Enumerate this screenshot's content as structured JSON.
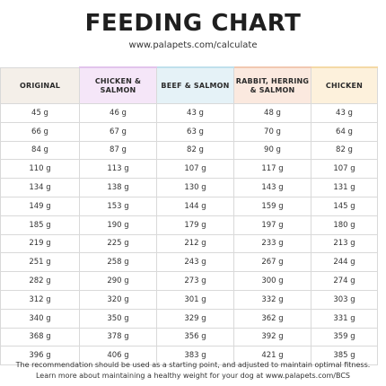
{
  "header": {
    "title": "FEEDING CHART",
    "url": "www.palapets.com/calculate"
  },
  "table": {
    "columns": [
      "ORIGINAL",
      "CHICKEN & SALMON",
      "BEEF & SALMON",
      "RABBIT, HERRING & SALMON",
      "CHICKEN"
    ],
    "rows": [
      [
        "45 g",
        "46 g",
        "43 g",
        "48 g",
        "43 g"
      ],
      [
        "66 g",
        "67 g",
        "63 g",
        "70 g",
        "64 g"
      ],
      [
        "84 g",
        "87 g",
        "82 g",
        "90 g",
        "82 g"
      ],
      [
        "110 g",
        "113 g",
        "107 g",
        "117 g",
        "107 g"
      ],
      [
        "134 g",
        "138 g",
        "130 g",
        "143 g",
        "131 g"
      ],
      [
        "149 g",
        "153 g",
        "144 g",
        "159 g",
        "145 g"
      ],
      [
        "185 g",
        "190 g",
        "179 g",
        "197 g",
        "180 g"
      ],
      [
        "219 g",
        "225 g",
        "212 g",
        "233 g",
        "213 g"
      ],
      [
        "251 g",
        "258 g",
        "243 g",
        "267 g",
        "244 g"
      ],
      [
        "282 g",
        "290 g",
        "273 g",
        "300 g",
        "274 g"
      ],
      [
        "312 g",
        "320 g",
        "301 g",
        "332 g",
        "303 g"
      ],
      [
        "340 g",
        "350 g",
        "329 g",
        "362 g",
        "331 g"
      ],
      [
        "368 g",
        "378 g",
        "356 g",
        "392 g",
        "359 g"
      ],
      [
        "396 g",
        "406 g",
        "383 g",
        "421 g",
        "385 g"
      ]
    ]
  },
  "footer": {
    "line1": "The recommendation should be used as a starting point, and adjusted to maintain optimal fitness.",
    "line2": "Learn more about maintaining a healthy weight for your dog at www.palapets.com/BCS"
  },
  "colors": {
    "original": "#f4efe9",
    "chicken_salmon": "#f5e6f8",
    "beef_salmon": "#e5f2f7",
    "rabbit_herring_salmon": "#fbe9df",
    "chicken": "#fdf1dc"
  }
}
